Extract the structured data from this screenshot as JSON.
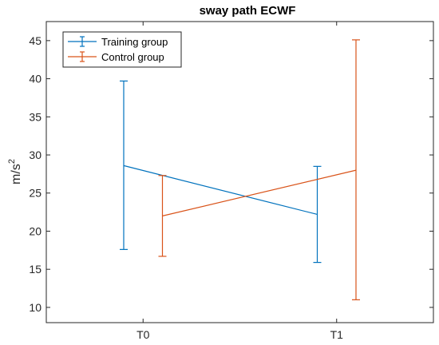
{
  "chart_data": {
    "type": "line",
    "title": "sway path ECWF",
    "xlabel": "",
    "ylabel": "m/s",
    "ylabel_superscript": "2",
    "categories": [
      "T0",
      "T1"
    ],
    "ylim": [
      8,
      47.5
    ],
    "yticks": [
      10,
      15,
      20,
      25,
      30,
      35,
      40,
      45
    ],
    "grid": false,
    "legend_position": "top-left",
    "series": [
      {
        "name": "Training group",
        "color": "#0072BD",
        "x_offset": -0.1,
        "values": [
          28.6,
          22.2
        ],
        "lower": [
          17.6,
          15.9
        ],
        "upper": [
          39.7,
          28.5
        ]
      },
      {
        "name": "Control group",
        "color": "#D95319",
        "x_offset": 0.1,
        "values": [
          22.0,
          28.0
        ],
        "lower": [
          16.7,
          11.0
        ],
        "upper": [
          27.3,
          45.1
        ]
      }
    ]
  }
}
